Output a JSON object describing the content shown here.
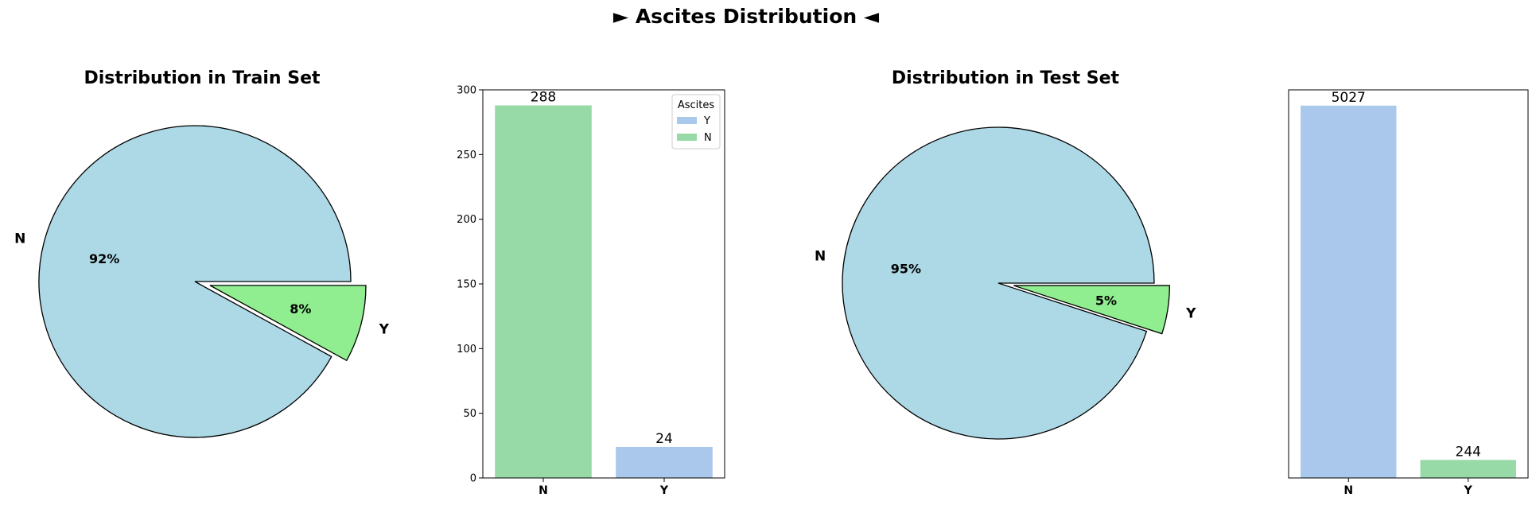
{
  "figure": {
    "suptitle": "► Ascites Distribution ◄"
  },
  "colors": {
    "pie_N": "#add8e6",
    "pie_Y": "#90ee90",
    "bar_blue": "#a9c8eb",
    "bar_green": "#98daa7",
    "edge": "#000000"
  },
  "chart_data": [
    {
      "type": "pie",
      "title": "Distribution in Train Set",
      "labels": [
        "N",
        "Y"
      ],
      "values": [
        92,
        8
      ],
      "value_labels": [
        "92%",
        "8%"
      ],
      "colors": [
        "#add8e6",
        "#90ee90"
      ],
      "explode": [
        0,
        0.1
      ]
    },
    {
      "type": "bar",
      "title": "",
      "categories": [
        "N",
        "Y"
      ],
      "values": [
        288,
        24
      ],
      "value_labels": [
        "288",
        "24"
      ],
      "bar_colors": [
        "#98daa7",
        "#a9c8eb"
      ],
      "ylim": [
        0,
        300
      ],
      "yticks": [
        0,
        50,
        100,
        150,
        200,
        250,
        300
      ],
      "show_yaxis": true,
      "legend": {
        "title": "Ascites",
        "placement": "top-right",
        "entries": [
          {
            "name": "Y",
            "color": "#a9c8eb"
          },
          {
            "name": "N",
            "color": "#98daa7"
          }
        ]
      }
    },
    {
      "type": "pie",
      "title": "Distribution in Test Set",
      "labels": [
        "N",
        "Y"
      ],
      "values": [
        95,
        5
      ],
      "value_labels": [
        "95%",
        "5%"
      ],
      "colors": [
        "#add8e6",
        "#90ee90"
      ],
      "explode": [
        0,
        0.1
      ]
    },
    {
      "type": "bar",
      "title": "",
      "categories": [
        "N",
        "Y"
      ],
      "values": [
        5027,
        244
      ],
      "value_labels": [
        "5027",
        "244"
      ],
      "bar_colors": [
        "#a9c8eb",
        "#98daa7"
      ],
      "ylim": [
        0,
        5240
      ],
      "yticks": [],
      "show_yaxis": false
    }
  ]
}
